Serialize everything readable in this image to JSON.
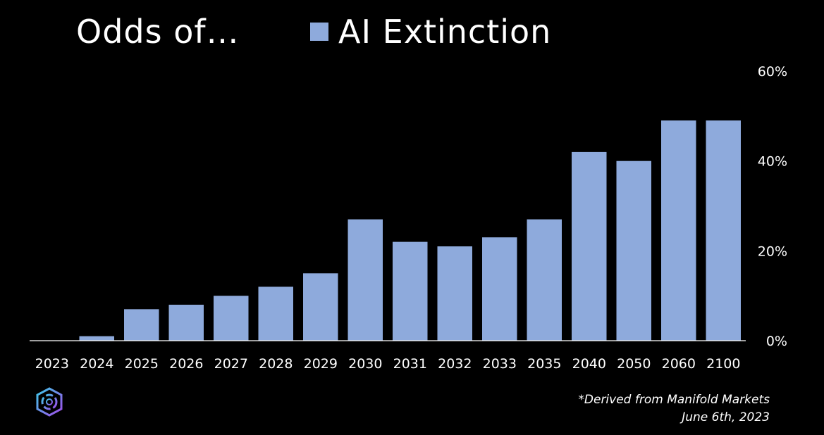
{
  "title": "Odds of…",
  "legend_label": "AI Extinction",
  "colors": {
    "bar": "#8eaadc",
    "background": "#000000",
    "text": "#ffffff"
  },
  "logo_icon": "hexagon-swirl-logo",
  "footnote": {
    "line1": "*Derived from Manifold Markets",
    "line2": "June 6th, 2023"
  },
  "chart_data": {
    "type": "bar",
    "title": "Odds of…",
    "categories": [
      "2023",
      "2024",
      "2025",
      "2026",
      "2027",
      "2028",
      "2029",
      "2030",
      "2031",
      "2032",
      "2033",
      "2035",
      "2040",
      "2050",
      "2060",
      "2100"
    ],
    "series": [
      {
        "name": "AI Extinction",
        "values": [
          0,
          1,
          7,
          8,
          10,
          12,
          15,
          27,
          22,
          21,
          23,
          27,
          42,
          40,
          49,
          49
        ]
      }
    ],
    "ylim": [
      0,
      60
    ],
    "yticks": [
      "0%",
      "20%",
      "40%",
      "60%"
    ],
    "ytick_values": [
      0,
      20,
      40,
      60
    ],
    "y_axis_side": "right",
    "grid": false,
    "legend_position": "top"
  }
}
